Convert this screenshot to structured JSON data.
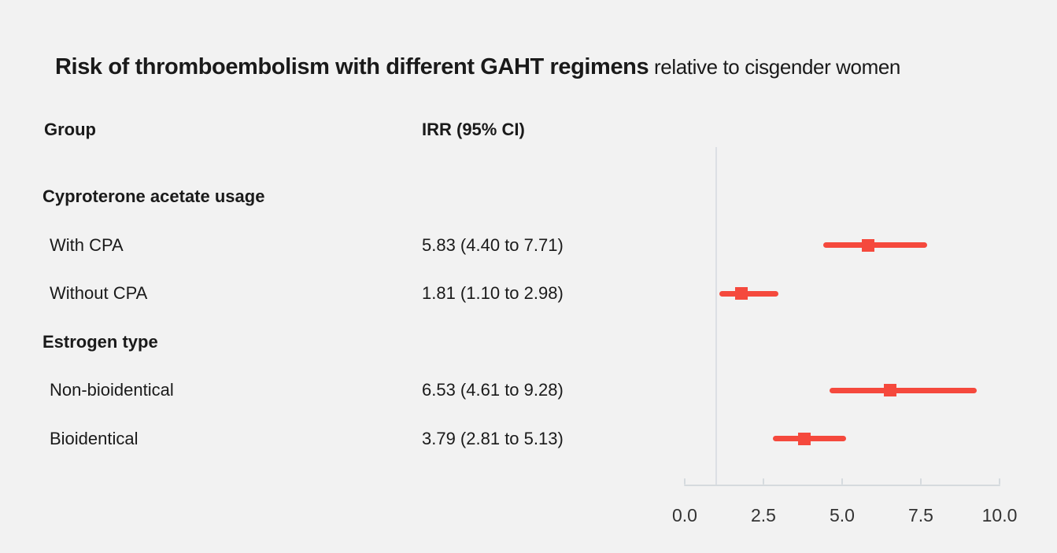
{
  "chart_data": {
    "type": "forest",
    "title_strong": "Risk of thromboembolism with different GAHT regimens",
    "title_rest": " relative to cisgender women",
    "columns": {
      "group": "Group",
      "irr": "IRR (95% CI)"
    },
    "reference_line": 1.0,
    "axis": {
      "label_format": "x",
      "min": 0.0,
      "max": 10.0,
      "tick_values": [
        0.0,
        2.5,
        5.0,
        7.5,
        10.0
      ],
      "tick_labels": [
        "0.0",
        "2.5",
        "5.0",
        "7.5",
        "10.0"
      ],
      "grid": "single-vertical-reference-line"
    },
    "entries": [
      {
        "kind": "section",
        "label": "Cyproterone acetate usage"
      },
      {
        "kind": "row",
        "label": "With CPA",
        "display": "5.83 (4.40 to 7.71)",
        "irr": 5.83,
        "lo": 4.4,
        "hi": 7.71
      },
      {
        "kind": "row",
        "label": "Without CPA",
        "display": "1.81 (1.10 to 2.98)",
        "irr": 1.81,
        "lo": 1.1,
        "hi": 2.98
      },
      {
        "kind": "section",
        "label": "Estrogen type"
      },
      {
        "kind": "row",
        "label": "Non-bioidentical",
        "display": "6.53 (4.61 to 9.28)",
        "irr": 6.53,
        "lo": 4.61,
        "hi": 9.28
      },
      {
        "kind": "row",
        "label": "Bioidentical",
        "display": "3.79 (2.81 to 5.13)",
        "irr": 3.79,
        "lo": 2.81,
        "hi": 5.13
      }
    ],
    "colors": {
      "marker": "#f5493d",
      "axis": "#d5dade",
      "vline": "#dcdfe4",
      "background": "#f2f2f2",
      "text": "#1a1a1a",
      "tick_text": "#333333"
    }
  }
}
